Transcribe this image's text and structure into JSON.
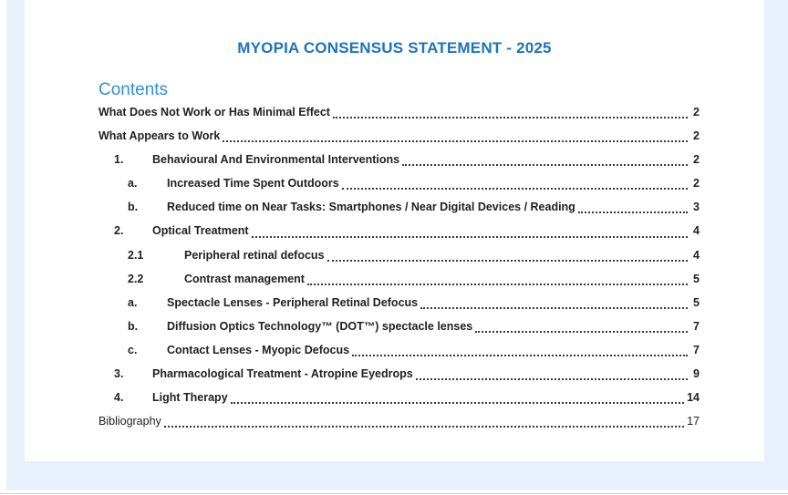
{
  "document": {
    "title": "MYOPIA CONSENSUS STATEMENT - 2025",
    "contents_heading": "Contents",
    "toc_entries": [
      {
        "num": "",
        "label": "What Does Not Work or Has Minimal Effect",
        "page": "2",
        "level": 0,
        "bold": true
      },
      {
        "num": "",
        "label": "What Appears to Work",
        "page": "2",
        "level": 0,
        "bold": true
      },
      {
        "num": "1.",
        "label": "Behavioural And Environmental Interventions",
        "page": "2",
        "level": 1,
        "bold": true
      },
      {
        "num": "a.",
        "label": "Increased Time Spent Outdoors",
        "page": "2",
        "level": 2,
        "bold": true
      },
      {
        "num": "b.",
        "label": "Reduced time on Near Tasks: Smartphones / Near Digital Devices / Reading",
        "page": "3",
        "level": 2,
        "bold": true
      },
      {
        "num": "2.",
        "label": "Optical Treatment",
        "page": "4",
        "level": 1,
        "bold": true
      },
      {
        "num": "2.1",
        "label": "Peripheral retinal defocus",
        "page": "4",
        "level": 3,
        "bold": true
      },
      {
        "num": "2.2",
        "label": "Contrast management",
        "page": "5",
        "level": 3,
        "bold": true
      },
      {
        "num": "a.",
        "label": "Spectacle Lenses - Peripheral Retinal Defocus",
        "page": "5",
        "level": 2,
        "bold": true
      },
      {
        "num": "b.",
        "label": "Diffusion Optics Technology™ (DOT™) spectacle lenses",
        "page": "7",
        "level": 2,
        "bold": true
      },
      {
        "num": "c.",
        "label": "Contact Lenses - Myopic Defocus",
        "page": "7",
        "level": 2,
        "bold": true
      },
      {
        "num": "3.",
        "label": "Pharmacological Treatment - Atropine Eyedrops",
        "page": "9",
        "level": 1,
        "bold": true
      },
      {
        "num": "4.",
        "label": "Light Therapy",
        "page": "14",
        "level": 1,
        "bold": true
      },
      {
        "num": "",
        "label": "Bibliography",
        "page": "17",
        "level": 0,
        "bold": false
      }
    ]
  },
  "colors": {
    "title_blue": "#1b74bc",
    "contents_blue": "#3191d1",
    "background_blue": "#e9f1fc",
    "text": "#212121"
  }
}
